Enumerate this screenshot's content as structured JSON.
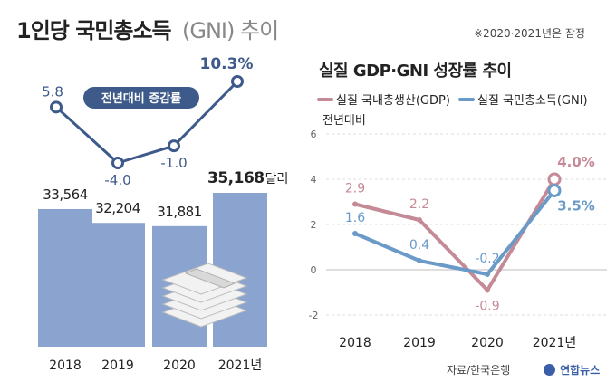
{
  "left": {
    "title_main": "1인당 국민총소득",
    "title_sub": "(GNI) 추이",
    "note": "※2020·2021년은 잠정",
    "badge_label": "전년대비 증감률",
    "unit_label": "달러"
  },
  "right": {
    "title": "실질 GDP·GNI 성장률 추이",
    "ylabel": "전년대비"
  },
  "footer": {
    "source": "자료/한국은행",
    "logo": "연합뉴스"
  },
  "colors": {
    "bar": "#8aa3cf",
    "gni_line": "#3d5a8a",
    "gdp_series": "#c48a96",
    "gni_series": "#6a9ac8"
  },
  "chart_data": [
    {
      "type": "bar",
      "categories": [
        "2018",
        "2019",
        "2020",
        "2021년"
      ],
      "values": [
        33564,
        32204,
        31881,
        35168
      ],
      "value_labels": [
        "33,564",
        "32,204",
        "31,881",
        "35,168"
      ],
      "title": "1인당 국민총소득(GNI) 추이"
    },
    {
      "type": "line",
      "categories": [
        "2018",
        "2019",
        "2020",
        "2021년"
      ],
      "values": [
        5.8,
        -4.0,
        -1.0,
        10.3
      ],
      "value_labels": [
        "5.8",
        "-4.0",
        "-1.0",
        "10.3%"
      ]
    },
    {
      "type": "line",
      "title": "실질 GDP·GNI 성장률 추이",
      "ylabel": "전년대비",
      "categories": [
        "2018",
        "2019",
        "2020",
        "2021년"
      ],
      "ylim": [
        -2,
        6
      ],
      "yticks": [
        -2,
        0,
        2,
        4,
        6
      ],
      "grid": true,
      "legend": "top",
      "series": [
        {
          "name": "실질 국내총생산(GDP)",
          "values": [
            2.9,
            2.2,
            -0.9,
            4.0
          ],
          "value_labels": [
            "2.9",
            "2.2",
            "-0.9",
            "4.0%"
          ]
        },
        {
          "name": "실질 국민총소득(GNI)",
          "values": [
            1.6,
            0.4,
            -0.2,
            3.5
          ],
          "value_labels": [
            "1.6",
            "0.4",
            "-0.2",
            "3.5%"
          ]
        }
      ]
    }
  ]
}
